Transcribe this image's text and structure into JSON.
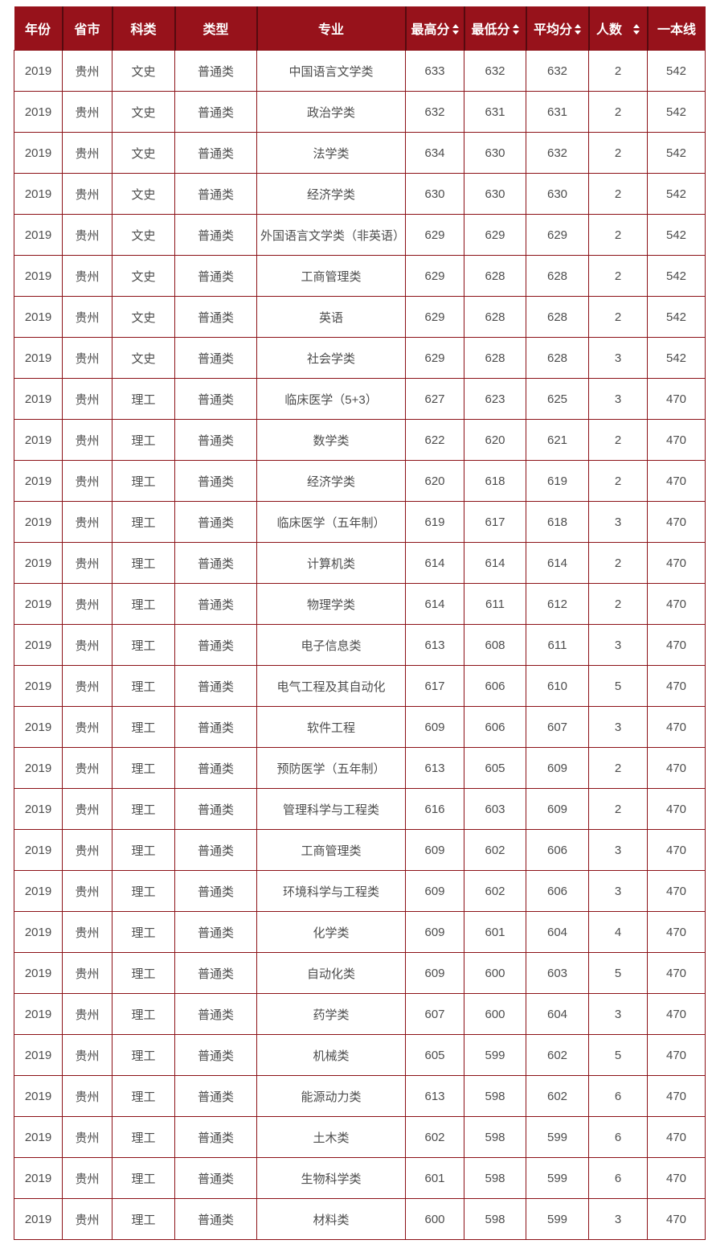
{
  "colors": {
    "header_background": "#97121b",
    "header_text": "#ffffff",
    "header_separator": "#560a0f",
    "cell_border": "#8c1117",
    "body_text": "#4d4d4d"
  },
  "table": {
    "columns": [
      {
        "key": "year",
        "label": "年份",
        "sortable": false
      },
      {
        "key": "province",
        "label": "省市",
        "sortable": false
      },
      {
        "key": "category",
        "label": "科类",
        "sortable": false
      },
      {
        "key": "type",
        "label": "类型",
        "sortable": false
      },
      {
        "key": "major",
        "label": "专业",
        "sortable": false
      },
      {
        "key": "max",
        "label": "最高分",
        "sortable": true
      },
      {
        "key": "min",
        "label": "最低分",
        "sortable": true
      },
      {
        "key": "avg",
        "label": "平均分",
        "sortable": true
      },
      {
        "key": "count",
        "label": "人数",
        "sortable": true
      },
      {
        "key": "line",
        "label": "一本线",
        "sortable": false
      }
    ],
    "sort_icon": "sort-toggle-icon",
    "rows": [
      [
        "2019",
        "贵州",
        "文史",
        "普通类",
        "中国语言文学类",
        "633",
        "632",
        "632",
        "2",
        "542"
      ],
      [
        "2019",
        "贵州",
        "文史",
        "普通类",
        "政治学类",
        "632",
        "631",
        "631",
        "2",
        "542"
      ],
      [
        "2019",
        "贵州",
        "文史",
        "普通类",
        "法学类",
        "634",
        "630",
        "632",
        "2",
        "542"
      ],
      [
        "2019",
        "贵州",
        "文史",
        "普通类",
        "经济学类",
        "630",
        "630",
        "630",
        "2",
        "542"
      ],
      [
        "2019",
        "贵州",
        "文史",
        "普通类",
        "外国语言文学类（非英语）",
        "629",
        "629",
        "629",
        "2",
        "542"
      ],
      [
        "2019",
        "贵州",
        "文史",
        "普通类",
        "工商管理类",
        "629",
        "628",
        "628",
        "2",
        "542"
      ],
      [
        "2019",
        "贵州",
        "文史",
        "普通类",
        "英语",
        "629",
        "628",
        "628",
        "2",
        "542"
      ],
      [
        "2019",
        "贵州",
        "文史",
        "普通类",
        "社会学类",
        "629",
        "628",
        "628",
        "3",
        "542"
      ],
      [
        "2019",
        "贵州",
        "理工",
        "普通类",
        "临床医学（5+3）",
        "627",
        "623",
        "625",
        "3",
        "470"
      ],
      [
        "2019",
        "贵州",
        "理工",
        "普通类",
        "数学类",
        "622",
        "620",
        "621",
        "2",
        "470"
      ],
      [
        "2019",
        "贵州",
        "理工",
        "普通类",
        "经济学类",
        "620",
        "618",
        "619",
        "2",
        "470"
      ],
      [
        "2019",
        "贵州",
        "理工",
        "普通类",
        "临床医学（五年制）",
        "619",
        "617",
        "618",
        "3",
        "470"
      ],
      [
        "2019",
        "贵州",
        "理工",
        "普通类",
        "计算机类",
        "614",
        "614",
        "614",
        "2",
        "470"
      ],
      [
        "2019",
        "贵州",
        "理工",
        "普通类",
        "物理学类",
        "614",
        "611",
        "612",
        "2",
        "470"
      ],
      [
        "2019",
        "贵州",
        "理工",
        "普通类",
        "电子信息类",
        "613",
        "608",
        "611",
        "3",
        "470"
      ],
      [
        "2019",
        "贵州",
        "理工",
        "普通类",
        "电气工程及其自动化",
        "617",
        "606",
        "610",
        "5",
        "470"
      ],
      [
        "2019",
        "贵州",
        "理工",
        "普通类",
        "软件工程",
        "609",
        "606",
        "607",
        "3",
        "470"
      ],
      [
        "2019",
        "贵州",
        "理工",
        "普通类",
        "预防医学（五年制）",
        "613",
        "605",
        "609",
        "2",
        "470"
      ],
      [
        "2019",
        "贵州",
        "理工",
        "普通类",
        "管理科学与工程类",
        "616",
        "603",
        "609",
        "2",
        "470"
      ],
      [
        "2019",
        "贵州",
        "理工",
        "普通类",
        "工商管理类",
        "609",
        "602",
        "606",
        "3",
        "470"
      ],
      [
        "2019",
        "贵州",
        "理工",
        "普通类",
        "环境科学与工程类",
        "609",
        "602",
        "606",
        "3",
        "470"
      ],
      [
        "2019",
        "贵州",
        "理工",
        "普通类",
        "化学类",
        "609",
        "601",
        "604",
        "4",
        "470"
      ],
      [
        "2019",
        "贵州",
        "理工",
        "普通类",
        "自动化类",
        "609",
        "600",
        "603",
        "5",
        "470"
      ],
      [
        "2019",
        "贵州",
        "理工",
        "普通类",
        "药学类",
        "607",
        "600",
        "604",
        "3",
        "470"
      ],
      [
        "2019",
        "贵州",
        "理工",
        "普通类",
        "机械类",
        "605",
        "599",
        "602",
        "5",
        "470"
      ],
      [
        "2019",
        "贵州",
        "理工",
        "普通类",
        "能源动力类",
        "613",
        "598",
        "602",
        "6",
        "470"
      ],
      [
        "2019",
        "贵州",
        "理工",
        "普通类",
        "土木类",
        "602",
        "598",
        "599",
        "6",
        "470"
      ],
      [
        "2019",
        "贵州",
        "理工",
        "普通类",
        "生物科学类",
        "601",
        "598",
        "599",
        "6",
        "470"
      ],
      [
        "2019",
        "贵州",
        "理工",
        "普通类",
        "材料类",
        "600",
        "598",
        "599",
        "3",
        "470"
      ]
    ]
  }
}
